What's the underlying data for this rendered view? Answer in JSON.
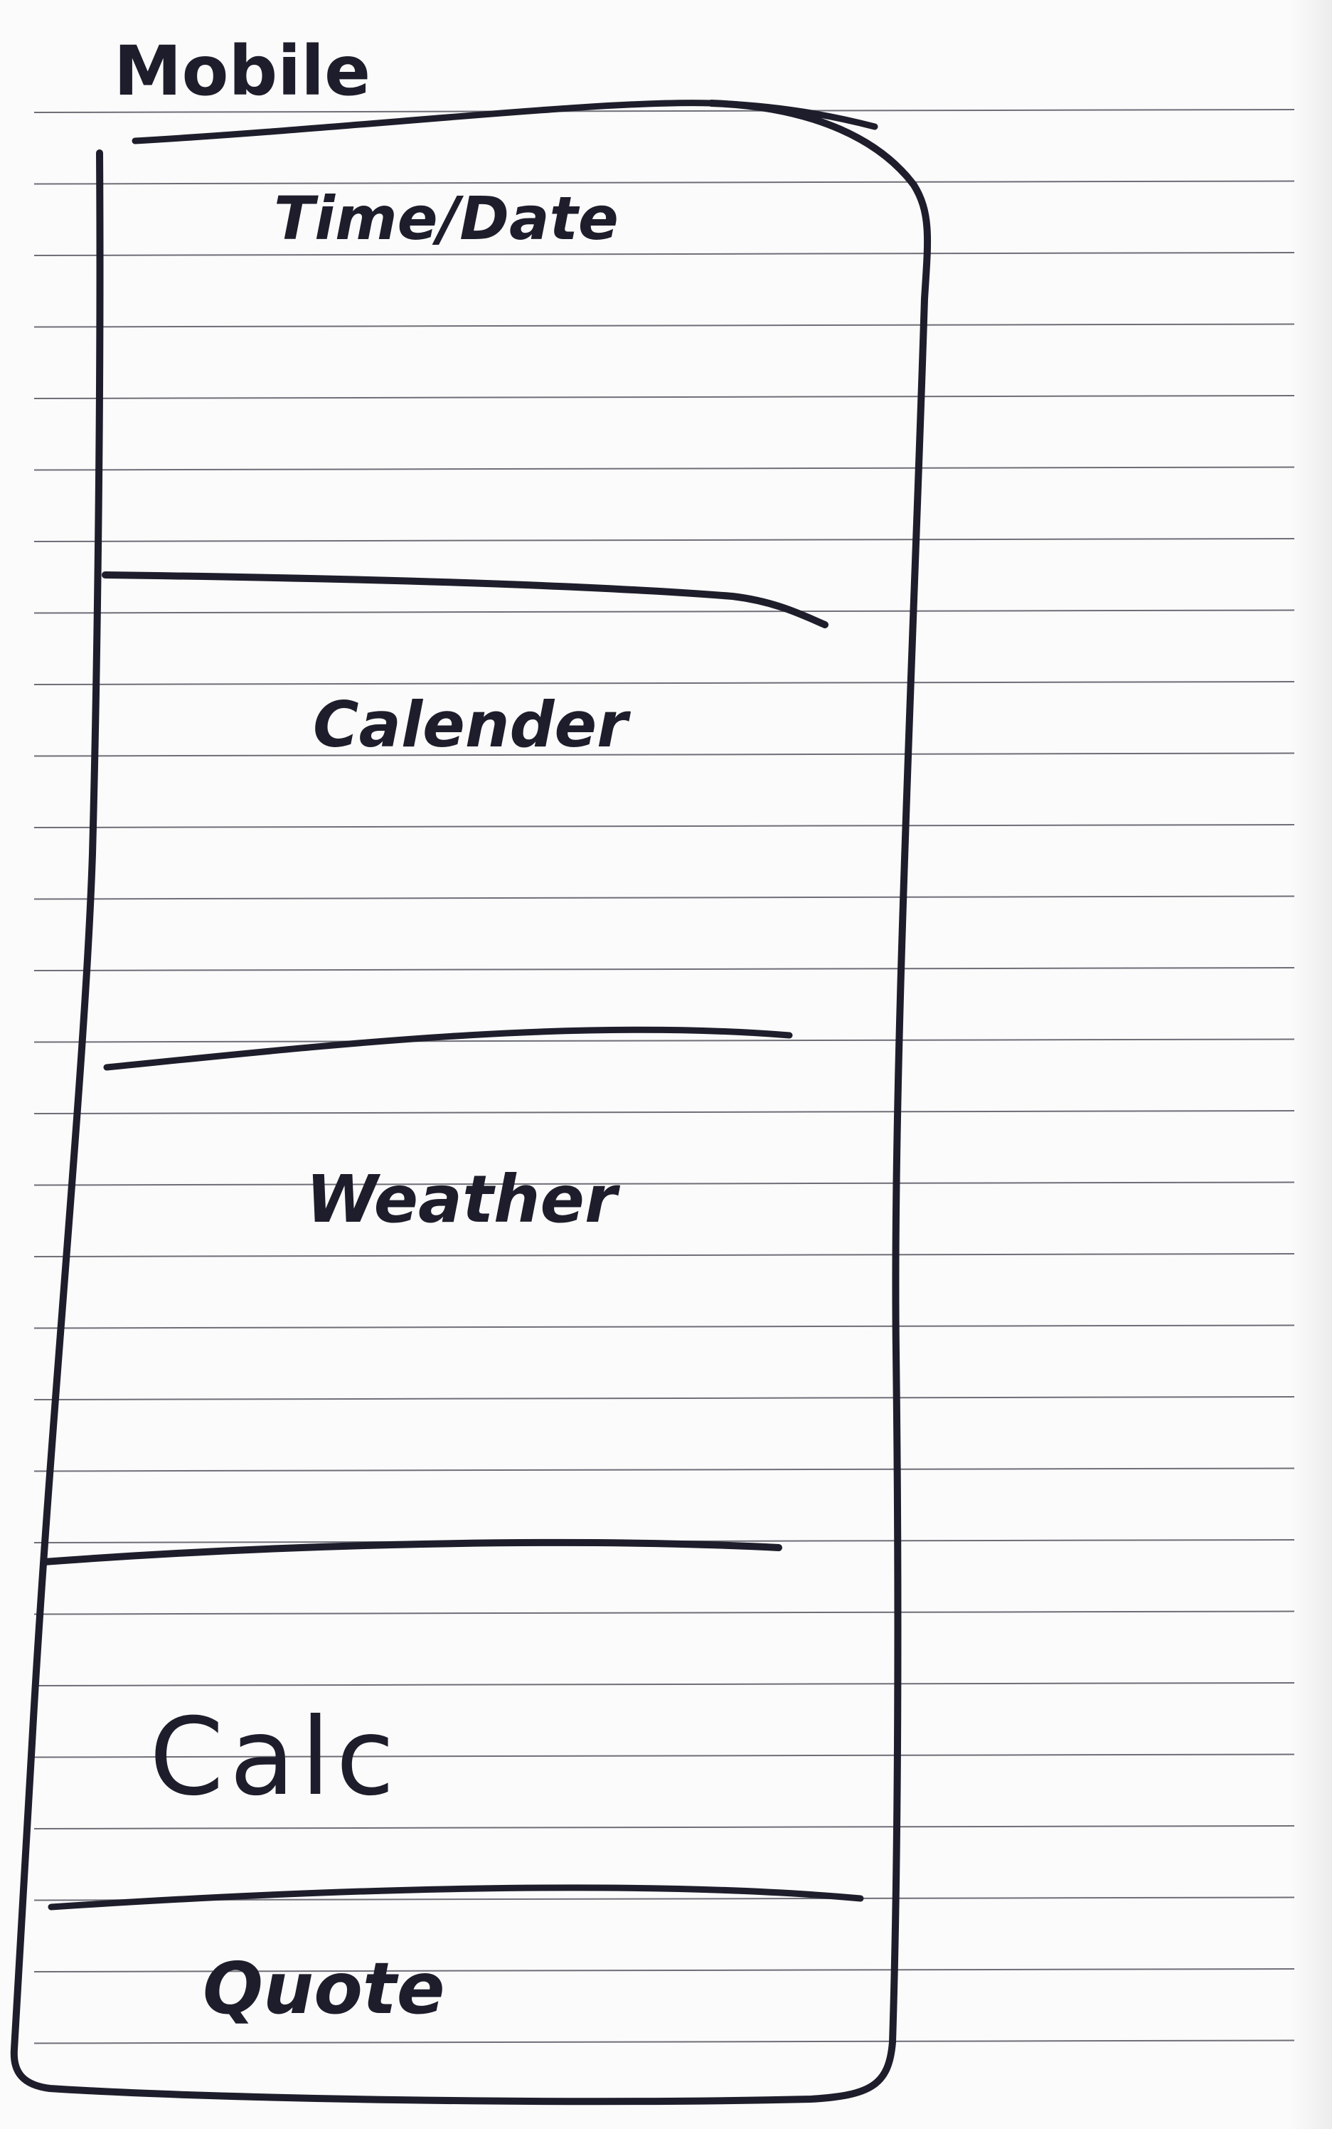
{
  "title": "Mobile",
  "sections": [
    {
      "id": "time-date",
      "label": "Time/Date"
    },
    {
      "id": "calendar",
      "label": "Calender"
    },
    {
      "id": "weather",
      "label": "Weather"
    },
    {
      "id": "calc",
      "label": "Calc"
    },
    {
      "id": "quote",
      "label": "Quote"
    }
  ],
  "colors": {
    "ink": "#1d1d2b",
    "rule": "#6e6e78",
    "paper": "#fbfbfb"
  }
}
